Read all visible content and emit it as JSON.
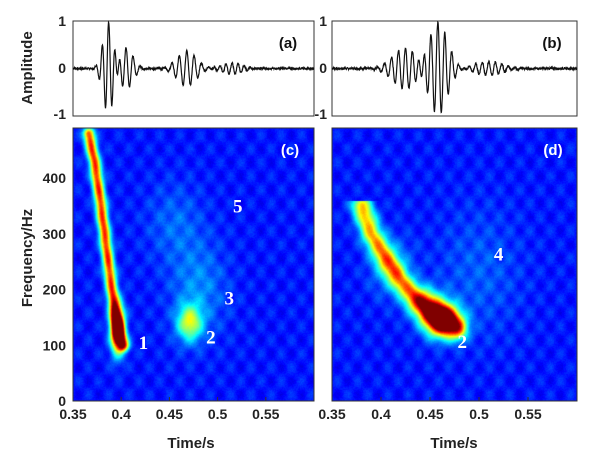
{
  "chart_data": [
    {
      "type": "line",
      "panel": "(a)",
      "ylabel": "Amplitude",
      "ylim": [
        -1,
        1
      ],
      "yticks": [
        "-1",
        "0",
        "1"
      ],
      "xlim": [
        0.35,
        0.6
      ],
      "series": [
        {
          "wavelets": [
            {
              "t0": 0.387,
              "amp": 1.0,
              "f": 150,
              "width": 0.008
            },
            {
              "t0": 0.405,
              "amp": 0.45,
              "f": 135,
              "width": 0.01
            },
            {
              "t0": 0.468,
              "amp": 0.38,
              "f": 130,
              "width": 0.014
            },
            {
              "t0": 0.515,
              "amp": 0.12,
              "f": 160,
              "width": 0.015
            }
          ],
          "noise": 0.035
        }
      ]
    },
    {
      "type": "line",
      "panel": "(b)",
      "ylim": [
        -1,
        1
      ],
      "yticks": [
        "-1",
        "0",
        "1"
      ],
      "xlim": [
        0.35,
        0.6
      ],
      "series": [
        {
          "wavelets": [
            {
              "t0": 0.425,
              "amp": 0.45,
              "f": 140,
              "width": 0.018
            },
            {
              "t0": 0.458,
              "amp": 1.0,
              "f": 140,
              "width": 0.014
            },
            {
              "t0": 0.51,
              "amp": 0.15,
              "f": 150,
              "width": 0.02
            }
          ],
          "noise": 0.04
        }
      ]
    },
    {
      "type": "heatmap",
      "panel": "(c)",
      "xlabel": "Time/s",
      "ylabel": "Frequency/Hz",
      "xlim": [
        0.35,
        0.6
      ],
      "ylim": [
        0,
        490
      ],
      "xticks": [
        "0.35",
        "0.4",
        "0.45",
        "0.5",
        "0.55"
      ],
      "yticks": [
        "0",
        "100",
        "200",
        "300",
        "400"
      ],
      "colormap": "jet",
      "features": [
        {
          "kind": "curve",
          "points": [
            [
              0.366,
              480
            ],
            [
              0.372,
              430
            ],
            [
              0.378,
              360
            ],
            [
              0.384,
              280
            ],
            [
              0.39,
              200
            ],
            [
              0.394,
              150
            ],
            [
              0.398,
              118
            ],
            [
              0.402,
              100
            ]
          ],
          "intensity": 0.7,
          "spread": 0.004
        },
        {
          "kind": "blob",
          "t": 0.396,
          "f": 128,
          "intensity": 1.0,
          "st": 0.005,
          "sf": 28
        },
        {
          "kind": "blob",
          "t": 0.471,
          "f": 140,
          "intensity": 0.42,
          "st": 0.009,
          "sf": 22
        },
        {
          "kind": "blob",
          "t": 0.48,
          "f": 200,
          "intensity": 0.12,
          "st": 0.02,
          "sf": 60
        },
        {
          "kind": "blob",
          "t": 0.455,
          "f": 320,
          "intensity": 0.08,
          "st": 0.02,
          "sf": 50
        }
      ],
      "annotations": [
        {
          "text": "1",
          "t": 0.423,
          "f": 93
        },
        {
          "text": "2",
          "t": 0.493,
          "f": 103
        },
        {
          "text": "3",
          "t": 0.512,
          "f": 173
        },
        {
          "text": "5",
          "t": 0.521,
          "f": 338
        }
      ]
    },
    {
      "type": "heatmap",
      "panel": "(d)",
      "xlabel": "Time/s",
      "xlim": [
        0.35,
        0.6
      ],
      "ylim": [
        0,
        490
      ],
      "xticks": [
        "0.35",
        "0.4",
        "0.45",
        "0.5",
        "0.55"
      ],
      "colormap": "jet",
      "features": [
        {
          "kind": "curve",
          "points": [
            [
              0.38,
              350
            ],
            [
              0.39,
              300
            ],
            [
              0.405,
              255
            ],
            [
              0.42,
              215
            ],
            [
              0.435,
              185
            ],
            [
              0.45,
              162
            ],
            [
              0.465,
              145
            ],
            [
              0.478,
              130
            ]
          ],
          "intensity": 0.55,
          "spread": 0.007
        },
        {
          "kind": "blob",
          "t": 0.462,
          "f": 145,
          "intensity": 1.0,
          "st": 0.012,
          "sf": 20
        },
        {
          "kind": "blob",
          "t": 0.445,
          "f": 175,
          "intensity": 0.35,
          "st": 0.012,
          "sf": 20
        },
        {
          "kind": "blob",
          "t": 0.41,
          "f": 240,
          "intensity": 0.15,
          "st": 0.015,
          "sf": 35
        },
        {
          "kind": "blob",
          "t": 0.5,
          "f": 230,
          "intensity": 0.07,
          "st": 0.03,
          "sf": 80
        }
      ],
      "annotations": [
        {
          "text": "2",
          "t": 0.483,
          "f": 95
        },
        {
          "text": "4",
          "t": 0.52,
          "f": 252
        }
      ]
    }
  ]
}
